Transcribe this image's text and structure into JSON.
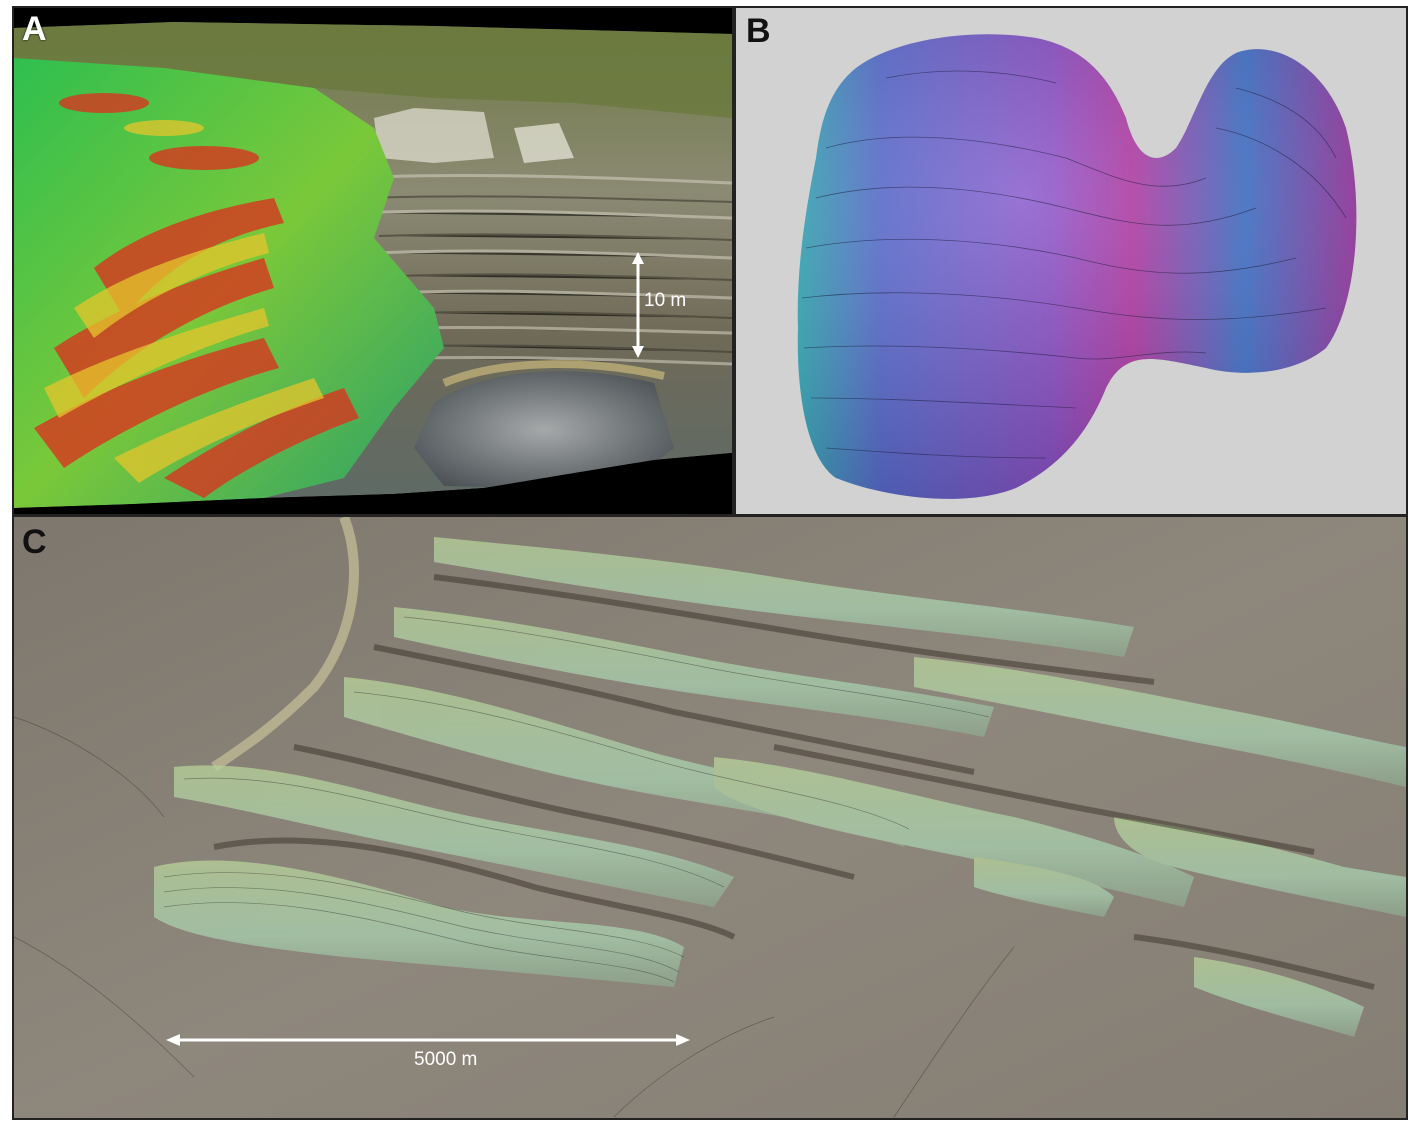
{
  "panels": [
    {
      "letter": "A",
      "scale_label": "10 m"
    },
    {
      "letter": "B"
    },
    {
      "letter": "C",
      "scale_label": "5000 m"
    }
  ]
}
